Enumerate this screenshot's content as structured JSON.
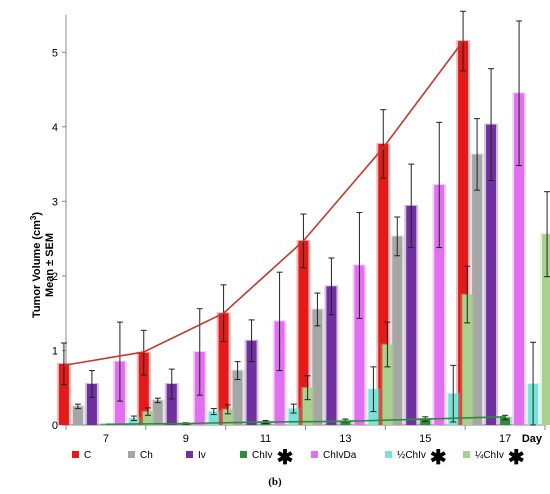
{
  "caption": "(b)",
  "chart_data": {
    "type": "bar",
    "categories": [
      "7",
      "9",
      "11",
      "13",
      "15",
      "17"
    ],
    "x_axis_suffix": "Day",
    "ylabel_line1": "Tumor Volume (cm",
    "ylabel_sup": "3",
    "ylabel_line1_end": ")",
    "ylabel_line2": "Mean ± SEM",
    "yticks": [
      "0",
      "1",
      "2",
      "3",
      "4",
      "5"
    ],
    "ylim": [
      0,
      5.5
    ],
    "grid": false,
    "legend_position": "bottom",
    "series": [
      {
        "name": "C",
        "color": "#e31a1a",
        "values": [
          0.82,
          0.97,
          1.5,
          2.47,
          3.77,
          5.15
        ],
        "errors": [
          0.28,
          0.3,
          0.38,
          0.36,
          0.46,
          0.4
        ],
        "marker": false
      },
      {
        "name": "Ch",
        "color": "#a6a6a6",
        "values": [
          0.25,
          0.33,
          0.73,
          1.55,
          2.53,
          3.63
        ],
        "errors": [
          0.03,
          0.03,
          0.12,
          0.22,
          0.26,
          0.48
        ],
        "marker": false
      },
      {
        "name": "Iv",
        "color": "#7030a0",
        "values": [
          0.55,
          0.55,
          1.13,
          1.86,
          2.94,
          4.03
        ],
        "errors": [
          0.18,
          0.2,
          0.28,
          0.38,
          0.56,
          0.75
        ],
        "marker": false
      },
      {
        "name": "ChIv",
        "color": "#2e8b3e",
        "values": [
          0.01,
          0.02,
          0.04,
          0.06,
          0.08,
          0.1
        ],
        "errors": [
          0.0,
          0.01,
          0.02,
          0.02,
          0.03,
          0.03
        ],
        "marker": true
      },
      {
        "name": "ChIvDa",
        "color": "#e070f0",
        "values": [
          0.85,
          0.98,
          1.39,
          2.14,
          3.22,
          4.45
        ],
        "errors": [
          0.53,
          0.58,
          0.66,
          0.71,
          0.84,
          0.97
        ],
        "marker": false
      },
      {
        "name": "½ChIv",
        "color": "#7ae3d8",
        "values": [
          0.09,
          0.18,
          0.22,
          0.48,
          0.42,
          0.55
        ],
        "errors": [
          0.03,
          0.04,
          0.06,
          0.3,
          0.38,
          0.56
        ],
        "marker": true
      },
      {
        "name": "¼ChIv",
        "color": "#a9d18e",
        "values": [
          0.18,
          0.21,
          0.5,
          1.08,
          1.75,
          2.56
        ],
        "errors": [
          0.05,
          0.06,
          0.16,
          0.3,
          0.38,
          0.57
        ],
        "marker": true
      }
    ],
    "trendlines": [
      {
        "series": "C",
        "color": "#c0392b",
        "values": [
          0.8,
          0.98,
          1.5,
          2.47,
          3.72,
          5.15
        ]
      },
      {
        "series": "ChIv",
        "color": "#2e8b3e",
        "values": [
          0.01,
          0.02,
          0.04,
          0.05,
          0.08,
          0.11
        ]
      }
    ]
  }
}
